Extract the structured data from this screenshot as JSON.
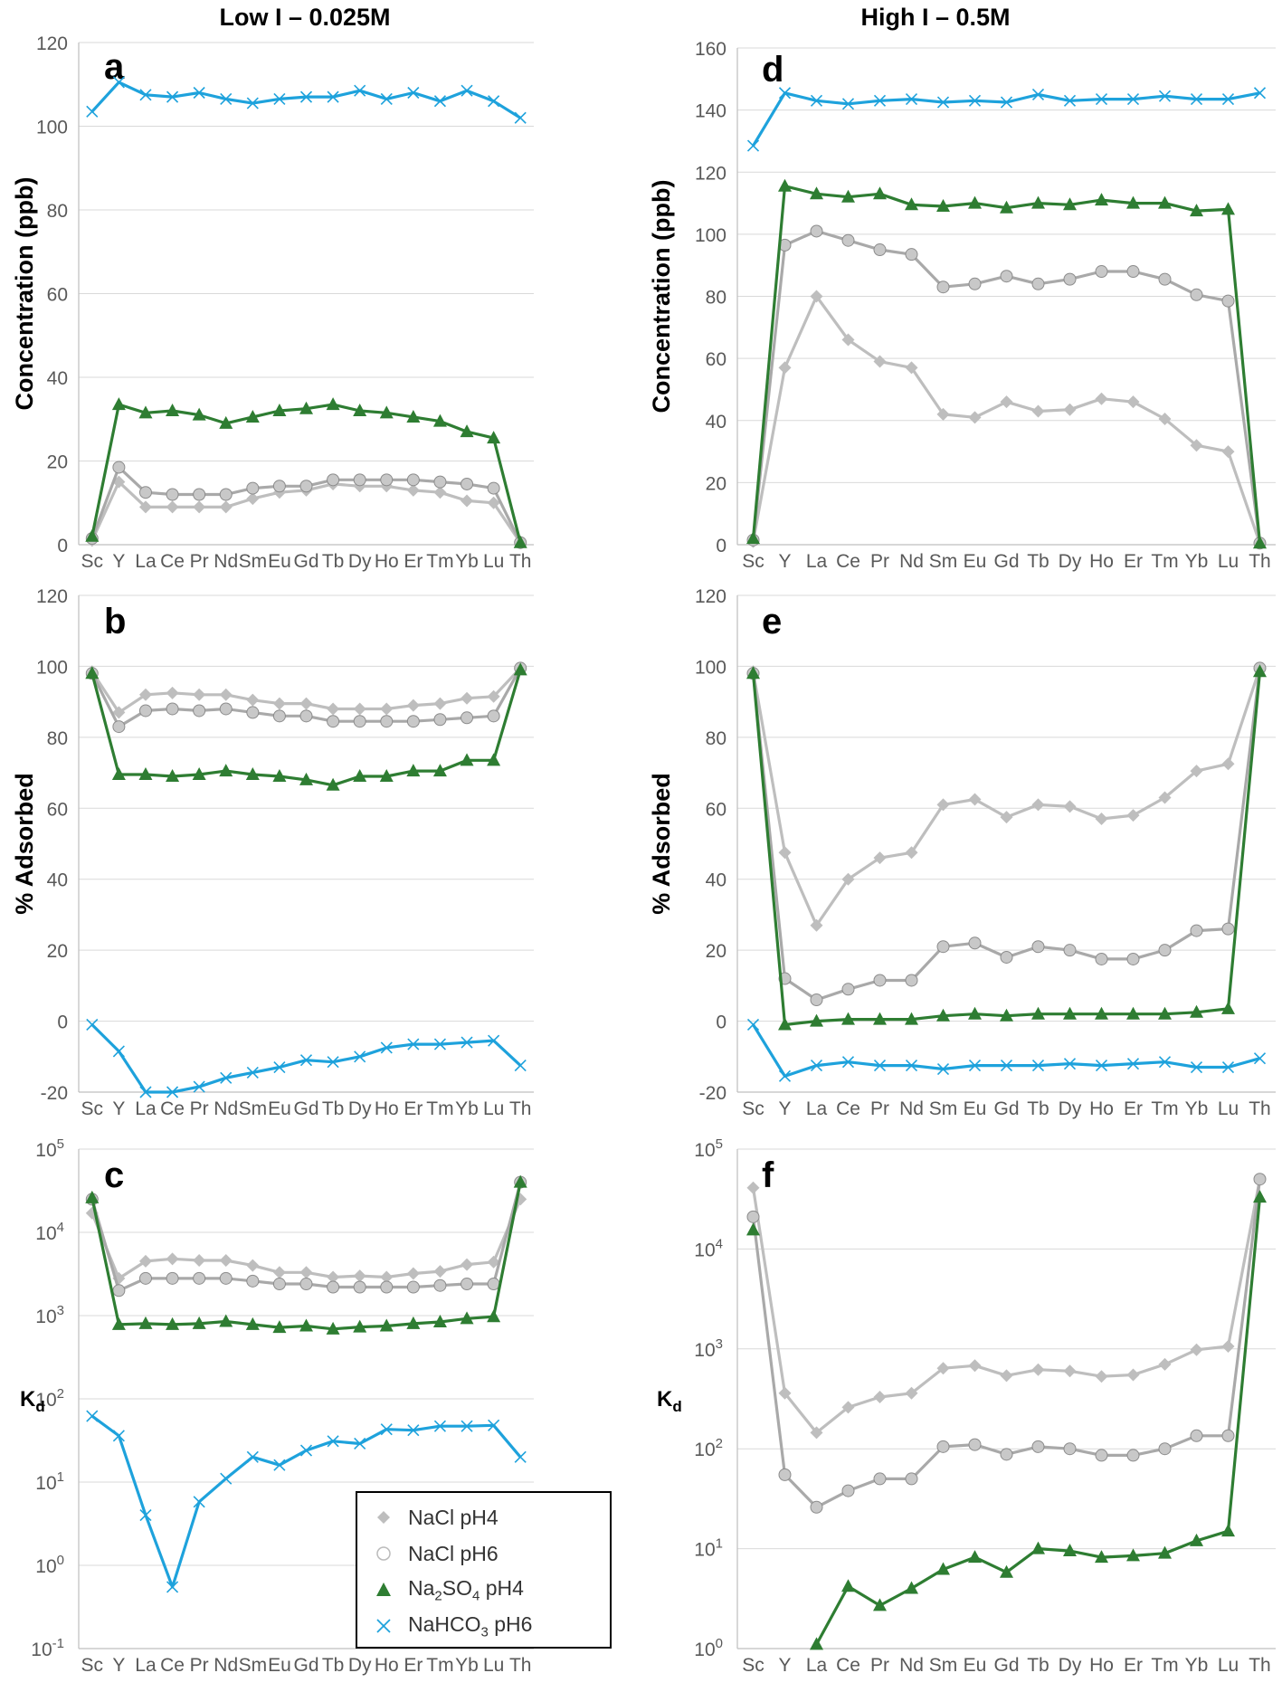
{
  "column_titles": [
    "Low I – 0.025M",
    "High I – 0.5M"
  ],
  "legend": {
    "items": [
      {
        "label": "NaCl pH4",
        "color": "#b8b8b8",
        "symbol": "diamond"
      },
      {
        "label": "NaCl pH6",
        "color": "#a6a6a6",
        "symbol": "circle"
      },
      {
        "label_main": "Na",
        "label_sub1": "2",
        "label_mid": "SO",
        "label_sub2": "4",
        "label_end": " pH4",
        "color": "#2e7d32",
        "symbol": "triangle"
      },
      {
        "label_main": "NaHCO",
        "label_sub1": "3",
        "label_end": " pH6",
        "color": "#1ea2dc",
        "symbol": "x"
      }
    ]
  },
  "x_categories": [
    "Sc",
    "Y",
    "La",
    "Ce",
    "Pr",
    "Nd",
    "Sm",
    "Eu",
    "Gd",
    "Tb",
    "Dy",
    "Ho",
    "Er",
    "Tm",
    "Yb",
    "Lu",
    "Th"
  ],
  "chart_data": [
    {
      "panel": "a",
      "type": "line",
      "ylabel": "Concentration (ppb)",
      "yscale": "linear",
      "ylim": [
        0,
        120
      ],
      "yticks": [
        0,
        20,
        40,
        60,
        80,
        100,
        120
      ],
      "series": [
        {
          "name": "NaCl pH4",
          "values": [
            1,
            15,
            9,
            9,
            9,
            9,
            11,
            12.5,
            13,
            14.5,
            14,
            14,
            13,
            12.5,
            10.5,
            10,
            0.5
          ]
        },
        {
          "name": "NaCl pH6",
          "values": [
            1.5,
            18.5,
            12.5,
            12,
            12,
            12,
            13.5,
            14,
            14,
            15.5,
            15.5,
            15.5,
            15.5,
            15,
            14.5,
            13.5,
            0.5
          ]
        },
        {
          "name": "Na2SO4 pH4",
          "values": [
            2,
            33.5,
            31.5,
            32,
            31,
            29,
            30.5,
            32,
            32.5,
            33.5,
            32,
            31.5,
            30.5,
            29.5,
            27,
            25.5,
            0.5
          ]
        },
        {
          "name": "NaHCO3 pH6",
          "values": [
            103.5,
            110.5,
            107.5,
            107,
            108,
            106.5,
            105.5,
            106.5,
            107,
            107,
            108.5,
            106.5,
            108,
            106,
            108.5,
            106,
            102
          ]
        }
      ]
    },
    {
      "panel": "b",
      "type": "line",
      "ylabel": "% Adsorbed",
      "yscale": "linear",
      "ylim": [
        -20,
        120
      ],
      "yticks": [
        -20,
        0,
        20,
        40,
        60,
        80,
        100,
        120
      ],
      "series": [
        {
          "name": "NaCl pH4",
          "values": [
            98.5,
            87,
            92,
            92.5,
            92,
            92,
            90.5,
            89.5,
            89.5,
            88,
            88,
            88,
            89,
            89.5,
            91,
            91.5,
            99.5
          ]
        },
        {
          "name": "NaCl pH6",
          "values": [
            98,
            83,
            87.5,
            88,
            87.5,
            88,
            87,
            86,
            86,
            84.5,
            84.5,
            84.5,
            84.5,
            85,
            85.5,
            86,
            99.5
          ]
        },
        {
          "name": "Na2SO4 pH4",
          "values": [
            98,
            69.5,
            69.5,
            69,
            69.5,
            70.5,
            69.5,
            69,
            68,
            66.5,
            69,
            69,
            70.5,
            70.5,
            73.5,
            73.5,
            99
          ]
        },
        {
          "name": "NaHCO3 pH6",
          "values": [
            -1,
            -8.5,
            -20,
            -20,
            -18.5,
            -16,
            -14.5,
            -13,
            -11,
            -11.5,
            -10,
            -7.5,
            -6.5,
            -6.5,
            -6,
            -5.5,
            -12.5
          ]
        }
      ]
    },
    {
      "panel": "c",
      "type": "line",
      "ylabel": "Kd",
      "yscale": "log",
      "ylim": [
        0.1,
        100000
      ],
      "yticks_exp": [
        -1,
        0,
        1,
        2,
        3,
        4,
        5
      ],
      "series": [
        {
          "name": "NaCl pH4",
          "values": [
            17000,
            2800,
            4500,
            4800,
            4600,
            4600,
            4000,
            3300,
            3300,
            2900,
            3000,
            2900,
            3200,
            3400,
            4100,
            4400,
            25000
          ]
        },
        {
          "name": "NaCl pH6",
          "values": [
            25000,
            2000,
            2800,
            2800,
            2800,
            2800,
            2600,
            2400,
            2400,
            2200,
            2200,
            2200,
            2200,
            2300,
            2400,
            2400,
            40000
          ]
        },
        {
          "name": "Na2SO4 pH4",
          "values": [
            26000,
            780,
            800,
            780,
            800,
            850,
            780,
            720,
            750,
            690,
            730,
            750,
            800,
            840,
            920,
            970,
            40000
          ]
        },
        {
          "name": "NaHCO3 pH6",
          "values": [
            62,
            36,
            4,
            0.55,
            5.8,
            11,
            20,
            16,
            24,
            31,
            29,
            43,
            42,
            47,
            47,
            48,
            20
          ]
        }
      ]
    },
    {
      "panel": "d",
      "type": "line",
      "ylabel": "Concentration (ppb)",
      "yscale": "linear",
      "ylim": [
        0,
        160
      ],
      "yticks": [
        0,
        20,
        40,
        60,
        80,
        100,
        120,
        140,
        160
      ],
      "series": [
        {
          "name": "NaCl pH4",
          "values": [
            1,
            57,
            80,
            66,
            59,
            57,
            42,
            41,
            46,
            43,
            43.5,
            47,
            46,
            40.5,
            32,
            30,
            0.5
          ]
        },
        {
          "name": "NaCl pH6",
          "values": [
            1.5,
            96.5,
            101,
            98,
            95,
            93.5,
            83,
            84,
            86.5,
            84,
            85.5,
            88,
            88,
            85.5,
            80.5,
            78.5,
            0.5
          ]
        },
        {
          "name": "Na2SO4 pH4",
          "values": [
            2,
            115.5,
            113,
            112,
            113,
            109.5,
            109,
            110,
            108.5,
            110,
            109.5,
            111,
            110,
            110,
            107.5,
            108,
            0.5
          ]
        },
        {
          "name": "NaHCO3 pH6",
          "values": [
            128.5,
            145.5,
            143,
            142,
            143,
            143.5,
            142.5,
            143,
            142.5,
            145,
            143,
            143.5,
            143.5,
            144.5,
            143.5,
            143.5,
            145.5
          ]
        }
      ]
    },
    {
      "panel": "e",
      "type": "line",
      "ylabel": "% Adsorbed",
      "yscale": "linear",
      "ylim": [
        -20,
        120
      ],
      "yticks": [
        -20,
        0,
        20,
        40,
        60,
        80,
        100,
        120
      ],
      "series": [
        {
          "name": "NaCl pH4",
          "values": [
            98.5,
            47.5,
            27,
            40,
            46,
            47.5,
            61,
            62.5,
            57.5,
            61,
            60.5,
            57,
            58,
            63,
            70.5,
            72.5,
            99.5
          ]
        },
        {
          "name": "NaCl pH6",
          "values": [
            98,
            12,
            6,
            9,
            11.5,
            11.5,
            21,
            22,
            18,
            21,
            20,
            17.5,
            17.5,
            20,
            25.5,
            26,
            99.5
          ]
        },
        {
          "name": "Na2SO4 pH4",
          "values": [
            98,
            -1,
            0,
            0.5,
            0.5,
            0.5,
            1.5,
            2,
            1.5,
            2,
            2,
            2,
            2,
            2,
            2.5,
            3.5,
            98.5
          ]
        },
        {
          "name": "NaHCO3 pH6",
          "values": [
            -1,
            -15.5,
            -12.5,
            -11.5,
            -12.5,
            -12.5,
            -13.5,
            -12.5,
            -12.5,
            -12.5,
            -12,
            -12.5,
            -12,
            -11.5,
            -13,
            -13,
            -10.5
          ]
        }
      ]
    },
    {
      "panel": "f",
      "type": "line",
      "ylabel": "Kd",
      "yscale": "log",
      "ylim": [
        1,
        100000
      ],
      "yticks_exp": [
        0,
        1,
        2,
        3,
        4,
        5
      ],
      "series": [
        {
          "name": "NaCl pH4",
          "values": [
            41000,
            360,
            145,
            260,
            330,
            360,
            640,
            680,
            540,
            620,
            600,
            530,
            550,
            700,
            980,
            1060,
            50000
          ]
        },
        {
          "name": "NaCl pH6",
          "values": [
            21000,
            55,
            26,
            38,
            50,
            50,
            105,
            110,
            88,
            105,
            100,
            86,
            86,
            100,
            135,
            135,
            50000
          ]
        },
        {
          "name": "Na2SO4 pH4",
          "values": [
            15500,
            null,
            1.1,
            4.2,
            2.7,
            4,
            6.2,
            8.2,
            5.8,
            10,
            9.5,
            8.2,
            8.5,
            9,
            12,
            15,
            33000
          ]
        },
        {
          "name": "NaHCO3 pH6",
          "values": []
        }
      ]
    }
  ],
  "styles": {
    "NaCl pH4": {
      "color": "#bebebe",
      "marker": "diamond"
    },
    "NaCl pH6": {
      "color": "#a9a9a9",
      "marker": "circle"
    },
    "Na2SO4 pH4": {
      "color": "#2e7d32",
      "marker": "triangle"
    },
    "NaHCO3 pH6": {
      "color": "#1ea2dc",
      "marker": "x"
    }
  }
}
